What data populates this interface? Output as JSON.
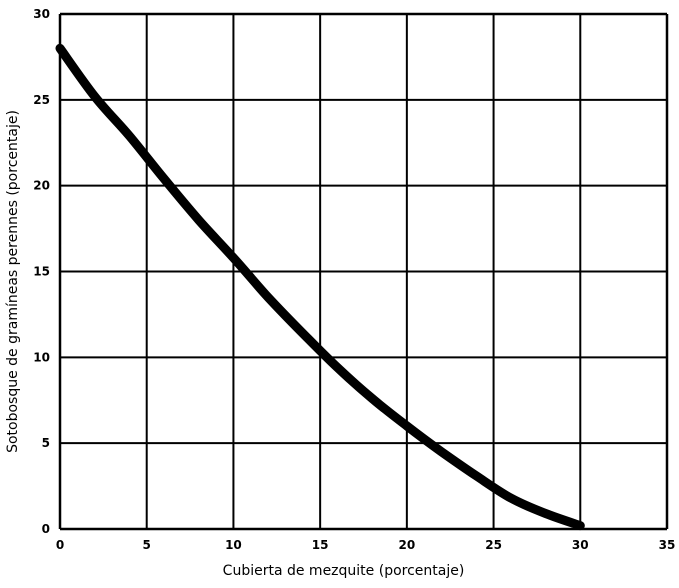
{
  "chart_data": {
    "type": "line",
    "title": "",
    "xlabel": "Cubierta de mezquite (porcentaje)",
    "ylabel": "Sotobosque de gramíneas perennes (porcentaje)",
    "xlim": [
      0,
      35
    ],
    "ylim": [
      0,
      30
    ],
    "xticks": [
      0,
      5,
      10,
      15,
      20,
      25,
      30,
      35
    ],
    "yticks": [
      0,
      5,
      10,
      15,
      20,
      25,
      30
    ],
    "xtick_labels": [
      "0",
      "5",
      "10",
      "15",
      "20",
      "25",
      "30",
      "35"
    ],
    "ytick_labels": [
      "0",
      "5",
      "10",
      "15",
      "20",
      "25",
      "30"
    ],
    "grid": true,
    "colors": {
      "line": "#000000",
      "grid": "#000000",
      "background": "#ffffff"
    },
    "series": [
      {
        "x": [
          0,
          2,
          4,
          6,
          8,
          10,
          12,
          14,
          16,
          18,
          20,
          22,
          24,
          26,
          28,
          30
        ],
        "y": [
          28.0,
          25.2,
          22.9,
          20.4,
          18.0,
          15.8,
          13.5,
          11.4,
          9.4,
          7.6,
          6.0,
          4.5,
          3.1,
          1.8,
          0.9,
          0.2
        ]
      }
    ]
  }
}
